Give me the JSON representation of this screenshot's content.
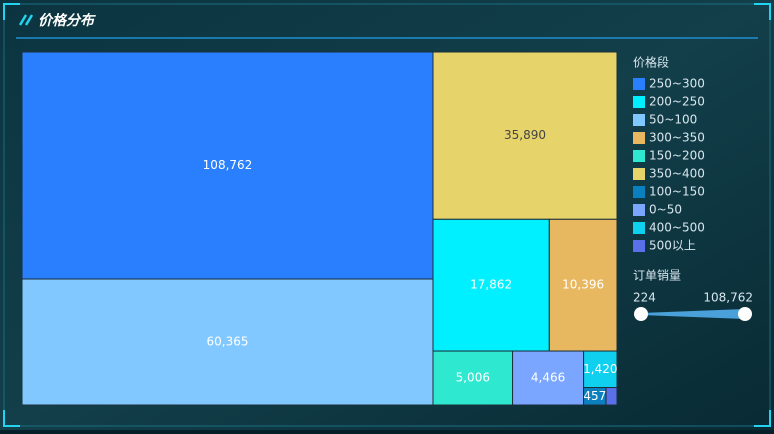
{
  "header": {
    "title": "价格分布"
  },
  "chart_data": {
    "type": "treemap",
    "legend_title": "价格段",
    "categories": [
      "250~300",
      "200~250",
      "50~100",
      "300~350",
      "150~200",
      "350~400",
      "100~150",
      "0~50",
      "400~500",
      "500以上"
    ],
    "colors": [
      "#2a7fff",
      "#00f0ff",
      "#80c8ff",
      "#e8b860",
      "#2ee8d0",
      "#e6d36a",
      "#0a80c0",
      "#7aa6ff",
      "#10d0f0",
      "#5a70e8"
    ],
    "values": [
      108762,
      17862,
      60365,
      10396,
      5006,
      35890,
      457,
      4466,
      1420,
      224
    ],
    "value_labels": [
      "108,762",
      "17,862",
      "60,365",
      "10,396",
      "5,006",
      "35,890",
      "457",
      "4,466",
      "1,420",
      null
    ],
    "visual_map": {
      "title": "订单销量",
      "range": [
        224,
        {
          "value": 108762,
          "label": "108,762"
        }
      ]
    }
  }
}
